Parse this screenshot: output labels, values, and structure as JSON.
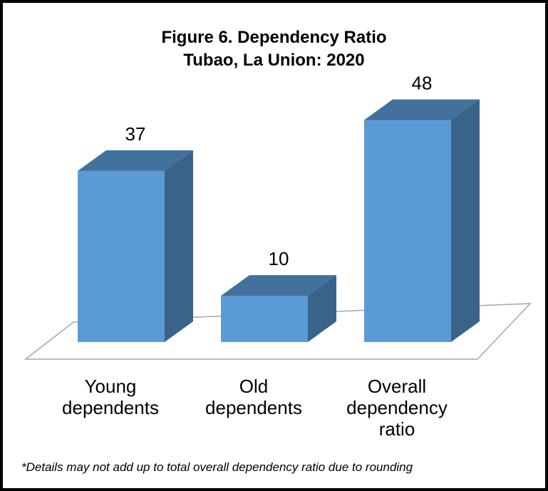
{
  "chart_data": {
    "type": "bar",
    "title": "Figure 6. Dependency Ratio",
    "subtitle": "Tubao, La Union: 2020",
    "categories": [
      [
        "Young",
        "dependents"
      ],
      [
        "Old",
        "dependents"
      ],
      [
        "Overall",
        "dependency",
        "ratio"
      ]
    ],
    "values": [
      37,
      10,
      48
    ],
    "data_labels": [
      "37",
      "10",
      "48"
    ],
    "ylim": [
      0,
      55
    ],
    "grid": false,
    "legend": "none",
    "style": "3d",
    "colors": {
      "front": "#5b9bd5",
      "top": "#41719c",
      "side": "#3a6389",
      "floor_line": "#a6a6a6"
    }
  },
  "footnote": "*Details may not add up to total overall dependency ratio due to rounding"
}
